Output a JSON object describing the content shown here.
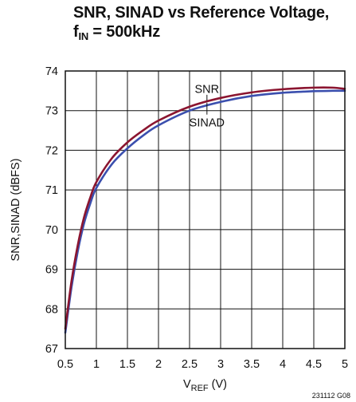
{
  "title": {
    "line1": "SNR, SINAD vs Reference Voltage,",
    "line2_prefix": "f",
    "line2_sub": "IN",
    "line2_suffix": " = 500kHz"
  },
  "figure_code": "231112 G08",
  "colors": {
    "snr": "#8b1530",
    "sinad": "#3b4fae",
    "grid": "#111111"
  },
  "chart_data": {
    "type": "line",
    "title": "SNR, SINAD vs Reference Voltage, fIN = 500kHz",
    "xlabel": {
      "prefix": "V",
      "sub": "REF",
      "suffix": " (V)"
    },
    "ylabel": "SNR,SINAD (dBFS)",
    "xlim": [
      0.5,
      5
    ],
    "ylim": [
      67,
      74
    ],
    "xticks": [
      "0.5",
      "1",
      "1.5",
      "2",
      "2.5",
      "3",
      "3.5",
      "4",
      "4.5",
      "5"
    ],
    "yticks": [
      "67",
      "68",
      "69",
      "70",
      "71",
      "72",
      "73",
      "74"
    ],
    "grid": true,
    "series": [
      {
        "name": "SNR",
        "x": [
          0.5,
          0.6,
          0.7,
          0.8,
          0.9,
          1.0,
          1.25,
          1.5,
          1.75,
          2.0,
          2.5,
          3.0,
          3.5,
          4.0,
          4.5,
          4.8,
          5.0
        ],
        "values": [
          67.5,
          68.7,
          69.6,
          70.3,
          70.8,
          71.2,
          71.8,
          72.2,
          72.5,
          72.75,
          73.1,
          73.32,
          73.46,
          73.54,
          73.58,
          73.58,
          73.55
        ]
      },
      {
        "name": "SINAD",
        "x": [
          0.5,
          0.6,
          0.7,
          0.8,
          0.9,
          1.0,
          1.25,
          1.5,
          1.75,
          2.0,
          2.5,
          3.0,
          3.5,
          4.0,
          4.5,
          4.8,
          5.0
        ],
        "values": [
          67.4,
          68.55,
          69.45,
          70.15,
          70.65,
          71.05,
          71.65,
          72.05,
          72.37,
          72.63,
          73.0,
          73.22,
          73.37,
          73.45,
          73.49,
          73.5,
          73.5
        ]
      }
    ]
  }
}
